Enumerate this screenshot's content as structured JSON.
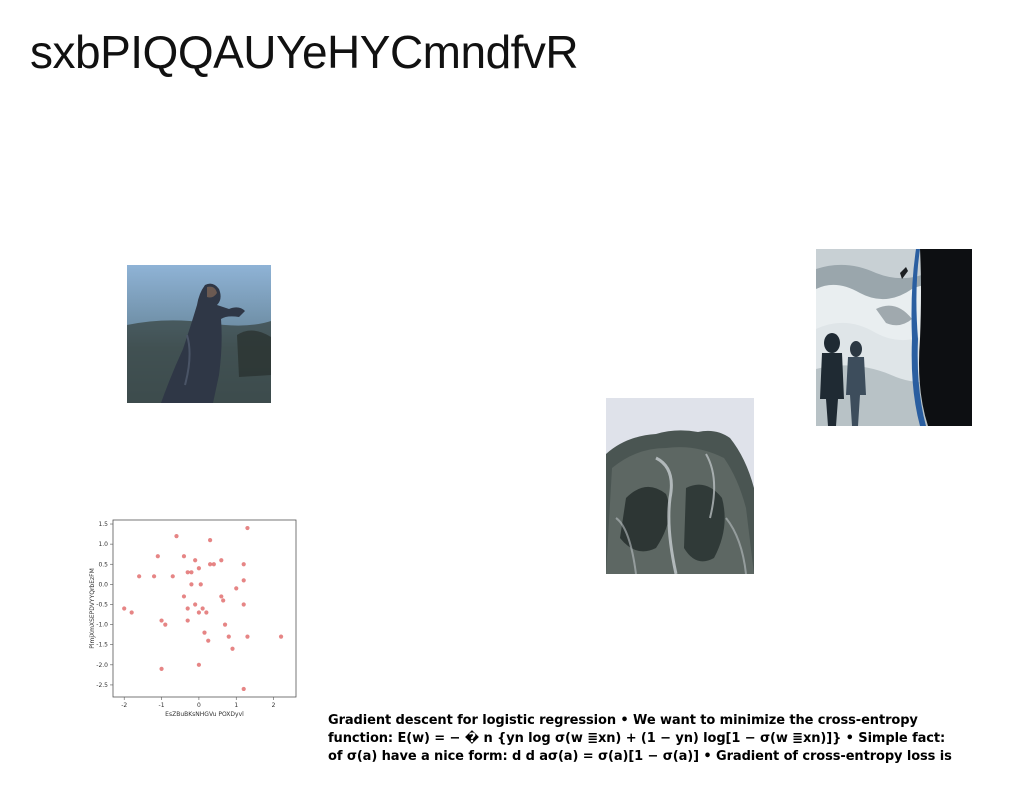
{
  "page": {
    "title": "sxbPIQQAUYeHYCmndfvR"
  },
  "images": {
    "figure": {
      "description_icon": "person-in-coat-icon"
    },
    "waves": {
      "description_icon": "ocean-waves-icon"
    },
    "cliff": {
      "description_icon": "snowy-cliff-icon"
    }
  },
  "caption": {
    "lines": [
      "Gradient descent for logistic regression • We want to minimize the cross-entropy",
      "function: E(w) = − � n {yn log σ(w ≣xn) + (1 − yn) log[1 − σ(w ≣xn)]} • Simple fact:",
      "of σ(a) have a nice form: d d aσ(a) = σ(a)[1 − σ(a)] • Gradient of cross-entropy loss is"
    ]
  },
  "chart_data": {
    "type": "scatter",
    "title": "",
    "xlabel": "EsZBuBKsNHGVu POXDyvl",
    "ylabel": "PlmjXmXSEPDVYYQrbEzFM",
    "xlim": [
      -2.3,
      2.6
    ],
    "ylim": [
      -2.8,
      1.6
    ],
    "xticks": [
      "-2",
      "-1",
      "0",
      "1",
      "2"
    ],
    "yticks": [
      "1.5",
      "1.0",
      "0.5",
      "0.0",
      "-0.5",
      "-1.0",
      "-1.5",
      "-2.0",
      "-2.5"
    ],
    "grid": false,
    "point_color": "#e06666",
    "x": [
      -2.0,
      -1.8,
      -1.6,
      -1.2,
      -1.1,
      -1.0,
      -1.0,
      -0.9,
      -0.7,
      -0.6,
      -0.4,
      -0.4,
      -0.3,
      -0.3,
      -0.3,
      -0.2,
      -0.2,
      -0.1,
      -0.1,
      0.0,
      0.0,
      0.0,
      0.05,
      0.1,
      0.15,
      0.2,
      0.25,
      0.3,
      0.3,
      0.4,
      0.6,
      0.6,
      0.65,
      0.7,
      0.8,
      0.9,
      1.0,
      1.2,
      1.2,
      1.2,
      1.2,
      1.3,
      1.3,
      2.2
    ],
    "y": [
      -0.6,
      -0.7,
      0.2,
      0.2,
      0.7,
      -0.9,
      -2.1,
      -1.0,
      0.2,
      1.2,
      -0.3,
      0.7,
      0.3,
      -0.6,
      -0.9,
      0.3,
      0.0,
      0.6,
      -0.5,
      0.4,
      -0.7,
      -2.0,
      0.0,
      -0.6,
      -1.2,
      -0.7,
      -1.4,
      1.1,
      0.5,
      0.5,
      0.6,
      -0.3,
      -0.4,
      -1.0,
      -1.3,
      -1.6,
      -0.1,
      0.5,
      0.1,
      -0.5,
      -2.6,
      1.4,
      -1.3,
      -1.3
    ]
  }
}
